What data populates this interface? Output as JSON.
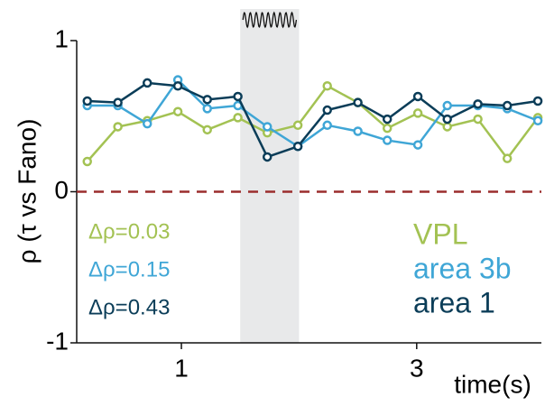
{
  "chart_data": {
    "type": "line",
    "x": [
      0.2,
      0.46,
      0.71,
      0.97,
      1.22,
      1.48,
      1.73,
      1.99,
      2.24,
      2.5,
      2.75,
      3.01,
      3.26,
      3.52,
      3.77,
      4.03
    ],
    "series": [
      {
        "name": "VPL",
        "color": "#a3c253",
        "annotation": "Δρ=0.03",
        "values": [
          0.2,
          0.43,
          0.47,
          0.53,
          0.41,
          0.49,
          0.39,
          0.44,
          0.7,
          0.59,
          0.42,
          0.52,
          0.43,
          0.48,
          0.22,
          0.49
        ]
      },
      {
        "name": "area 3b",
        "color": "#3fa6d6",
        "annotation": "Δρ=0.15",
        "values": [
          0.57,
          0.57,
          0.45,
          0.74,
          0.55,
          0.57,
          0.43,
          0.3,
          0.44,
          0.4,
          0.34,
          0.31,
          0.57,
          0.57,
          0.55,
          0.47
        ]
      },
      {
        "name": "area 1",
        "color": "#0b3d58",
        "annotation": "Δρ=0.43",
        "values": [
          0.6,
          0.59,
          0.72,
          0.7,
          0.61,
          0.63,
          0.23,
          0.3,
          0.54,
          0.59,
          0.48,
          0.63,
          0.48,
          0.58,
          0.57,
          0.6
        ]
      }
    ],
    "x_label": "time(s)",
    "y_label": "ρ (τ vs Fano)",
    "xlim": [
      0.11,
      4.06
    ],
    "ylim": [
      -1,
      1
    ],
    "xticks": [
      1,
      3
    ],
    "yticks": [
      -1,
      0,
      1
    ],
    "shade": [
      1.5,
      2.0
    ],
    "hline": 0,
    "hline_color": "#9b2d2d"
  }
}
